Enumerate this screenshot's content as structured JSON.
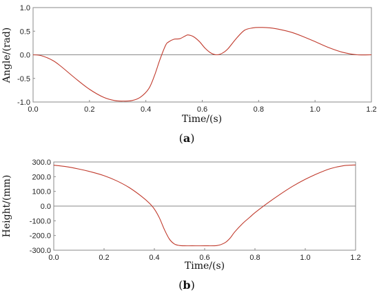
{
  "chart_data": [
    {
      "type": "line",
      "panel_label": "a",
      "xlabel": "Time/(s)",
      "ylabel": "Angle/(rad)",
      "xlim": [
        0,
        1.2
      ],
      "ylim": [
        -1.0,
        1.0
      ],
      "x_ticks": [
        0.0,
        0.2,
        0.4,
        0.6,
        0.8,
        1.0,
        1.2
      ],
      "x_tick_labels": [
        "0.0",
        "0.2",
        "0.4",
        "0.6",
        "0.8",
        "1.0",
        "1.2"
      ],
      "y_ticks": [
        -1.0,
        -0.5,
        0.0,
        0.5,
        1.0
      ],
      "y_tick_labels": [
        "-1.0",
        "-0.5",
        "0.0",
        "0.5",
        "1.0"
      ],
      "zero_line": true,
      "grid": false,
      "line_color": "#c0392b",
      "series": [
        {
          "x": [
            0.0,
            0.03,
            0.07,
            0.1,
            0.15,
            0.2,
            0.25,
            0.29,
            0.32,
            0.35,
            0.38,
            0.41,
            0.43,
            0.45,
            0.47,
            0.48,
            0.5,
            0.52,
            0.54,
            0.55,
            0.57,
            0.59,
            0.61,
            0.63,
            0.65,
            0.67,
            0.69,
            0.72,
            0.75,
            0.78,
            0.8,
            0.84,
            0.88,
            0.92,
            0.96,
            1.0,
            1.05,
            1.1,
            1.15,
            1.2
          ],
          "y": [
            0.0,
            -0.02,
            -0.12,
            -0.25,
            -0.5,
            -0.73,
            -0.9,
            -0.97,
            -0.98,
            -0.97,
            -0.9,
            -0.72,
            -0.45,
            -0.1,
            0.2,
            0.27,
            0.33,
            0.34,
            0.4,
            0.42,
            0.38,
            0.28,
            0.14,
            0.04,
            0.0,
            0.03,
            0.12,
            0.34,
            0.52,
            0.57,
            0.58,
            0.57,
            0.53,
            0.47,
            0.38,
            0.28,
            0.15,
            0.05,
            0.0,
            0.0
          ]
        }
      ]
    },
    {
      "type": "line",
      "panel_label": "b",
      "xlabel": "Time/(s)",
      "ylabel": "Height/(mm)",
      "xlim": [
        0,
        1.2
      ],
      "ylim": [
        -300,
        300
      ],
      "x_ticks": [
        0.0,
        0.2,
        0.4,
        0.6,
        0.8,
        1.0,
        1.2
      ],
      "x_tick_labels": [
        "0.0",
        "0.2",
        "0.4",
        "0.6",
        "0.8",
        "1.0",
        "1.2"
      ],
      "y_ticks": [
        -300,
        -200,
        -100,
        0,
        100,
        200,
        300
      ],
      "y_tick_labels": [
        "-300.0",
        "-200.0",
        "-100.0",
        "0.0",
        "100.0",
        "200.0",
        "300.0"
      ],
      "zero_line": true,
      "grid": false,
      "line_color": "#c0392b",
      "series": [
        {
          "x": [
            0.0,
            0.05,
            0.1,
            0.15,
            0.2,
            0.25,
            0.3,
            0.35,
            0.38,
            0.4,
            0.42,
            0.44,
            0.46,
            0.48,
            0.5,
            0.52,
            0.55,
            0.6,
            0.65,
            0.68,
            0.7,
            0.72,
            0.75,
            0.78,
            0.8,
            0.85,
            0.9,
            0.95,
            1.0,
            1.05,
            1.1,
            1.15,
            1.2
          ],
          "y": [
            278,
            268,
            252,
            232,
            207,
            172,
            126,
            65,
            20,
            -20,
            -80,
            -160,
            -225,
            -258,
            -268,
            -270,
            -270,
            -270,
            -268,
            -250,
            -220,
            -175,
            -120,
            -75,
            -45,
            20,
            80,
            135,
            182,
            222,
            255,
            274,
            280
          ]
        }
      ]
    }
  ]
}
